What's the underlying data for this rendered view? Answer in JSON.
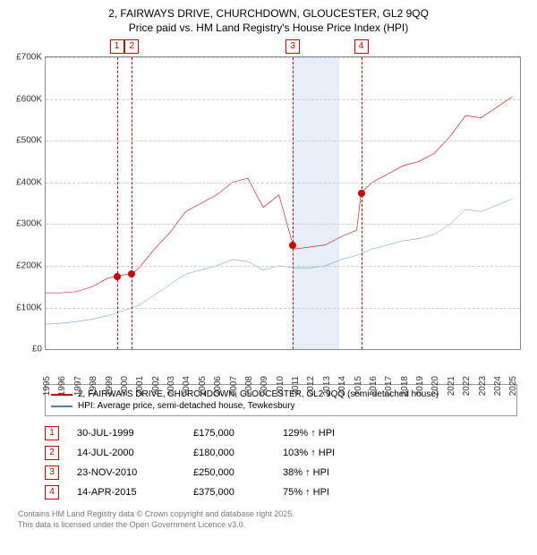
{
  "title_line1": "2, FAIRWAYS DRIVE, CHURCHDOWN, GLOUCESTER, GL2 9QQ",
  "title_line2": "Price paid vs. HM Land Registry's House Price Index (HPI)",
  "chart": {
    "type": "line",
    "ylim": [
      0,
      700000
    ],
    "ytick_step": 100000,
    "yticks": [
      "£0",
      "£100K",
      "£200K",
      "£300K",
      "£400K",
      "£500K",
      "£600K",
      "£700K"
    ],
    "xlim": [
      1995,
      2025.5
    ],
    "xticks": [
      1995,
      1996,
      1997,
      1998,
      1999,
      2000,
      2001,
      2002,
      2003,
      2004,
      2005,
      2006,
      2007,
      2008,
      2009,
      2010,
      2011,
      2012,
      2013,
      2014,
      2015,
      2016,
      2017,
      2018,
      2019,
      2020,
      2021,
      2022,
      2023,
      2024,
      2025
    ],
    "grid_color": "#cccccc",
    "band_color": "#e6eef7",
    "bands": [
      {
        "start": 2010.9,
        "end": 2013.9
      }
    ],
    "series_property": {
      "color": "#cc0000",
      "width": 2,
      "data": [
        [
          1995,
          135000
        ],
        [
          1996,
          135000
        ],
        [
          1997,
          138000
        ],
        [
          1998,
          150000
        ],
        [
          1999,
          170000
        ],
        [
          1999.58,
          175000
        ],
        [
          2000,
          178000
        ],
        [
          2000.54,
          180000
        ],
        [
          2001,
          195000
        ],
        [
          2002,
          240000
        ],
        [
          2003,
          280000
        ],
        [
          2004,
          330000
        ],
        [
          2005,
          350000
        ],
        [
          2006,
          370000
        ],
        [
          2007,
          400000
        ],
        [
          2008,
          410000
        ],
        [
          2008.7,
          360000
        ],
        [
          2009,
          340000
        ],
        [
          2010,
          370000
        ],
        [
          2010.9,
          250000
        ],
        [
          2011,
          240000
        ],
        [
          2012,
          245000
        ],
        [
          2013,
          250000
        ],
        [
          2014,
          270000
        ],
        [
          2015,
          285000
        ],
        [
          2015.29,
          375000
        ],
        [
          2016,
          400000
        ],
        [
          2017,
          420000
        ],
        [
          2018,
          440000
        ],
        [
          2019,
          450000
        ],
        [
          2020,
          470000
        ],
        [
          2021,
          510000
        ],
        [
          2022,
          560000
        ],
        [
          2023,
          555000
        ],
        [
          2024,
          580000
        ],
        [
          2025,
          605000
        ]
      ]
    },
    "series_hpi": {
      "color": "#4a7ebb",
      "width": 1.5,
      "data": [
        [
          1995,
          60000
        ],
        [
          1996,
          62000
        ],
        [
          1997,
          66000
        ],
        [
          1998,
          72000
        ],
        [
          1999,
          80000
        ],
        [
          2000,
          92000
        ],
        [
          2001,
          105000
        ],
        [
          2002,
          130000
        ],
        [
          2003,
          155000
        ],
        [
          2004,
          180000
        ],
        [
          2005,
          190000
        ],
        [
          2006,
          200000
        ],
        [
          2007,
          215000
        ],
        [
          2008,
          210000
        ],
        [
          2009,
          190000
        ],
        [
          2010,
          200000
        ],
        [
          2011,
          195000
        ],
        [
          2012,
          195000
        ],
        [
          2013,
          200000
        ],
        [
          2014,
          215000
        ],
        [
          2015,
          225000
        ],
        [
          2016,
          240000
        ],
        [
          2017,
          250000
        ],
        [
          2018,
          260000
        ],
        [
          2019,
          265000
        ],
        [
          2020,
          275000
        ],
        [
          2021,
          300000
        ],
        [
          2022,
          335000
        ],
        [
          2023,
          330000
        ],
        [
          2024,
          345000
        ],
        [
          2025,
          360000
        ]
      ]
    },
    "sale_markers": [
      {
        "n": "1",
        "year": 1999.58,
        "price": 175000
      },
      {
        "n": "2",
        "year": 2000.54,
        "price": 180000
      },
      {
        "n": "3",
        "year": 2010.9,
        "price": 250000
      },
      {
        "n": "4",
        "year": 2015.29,
        "price": 375000
      }
    ]
  },
  "legend": {
    "series1": "2, FAIRWAYS DRIVE, CHURCHDOWN, GLOUCESTER, GL2 9QQ (semi-detached house)",
    "series2": "HPI: Average price, semi-detached house, Tewkesbury"
  },
  "sales": [
    {
      "n": "1",
      "date": "30-JUL-1999",
      "price": "£175,000",
      "hpi": "129% ↑ HPI"
    },
    {
      "n": "2",
      "date": "14-JUL-2000",
      "price": "£180,000",
      "hpi": "103% ↑ HPI"
    },
    {
      "n": "3",
      "date": "23-NOV-2010",
      "price": "£250,000",
      "hpi": "38% ↑ HPI"
    },
    {
      "n": "4",
      "date": "14-APR-2015",
      "price": "£375,000",
      "hpi": "75% ↑ HPI"
    }
  ],
  "footer_line1": "Contains HM Land Registry data © Crown copyright and database right 2025.",
  "footer_line2": "This data is licensed under the Open Government Licence v3.0."
}
